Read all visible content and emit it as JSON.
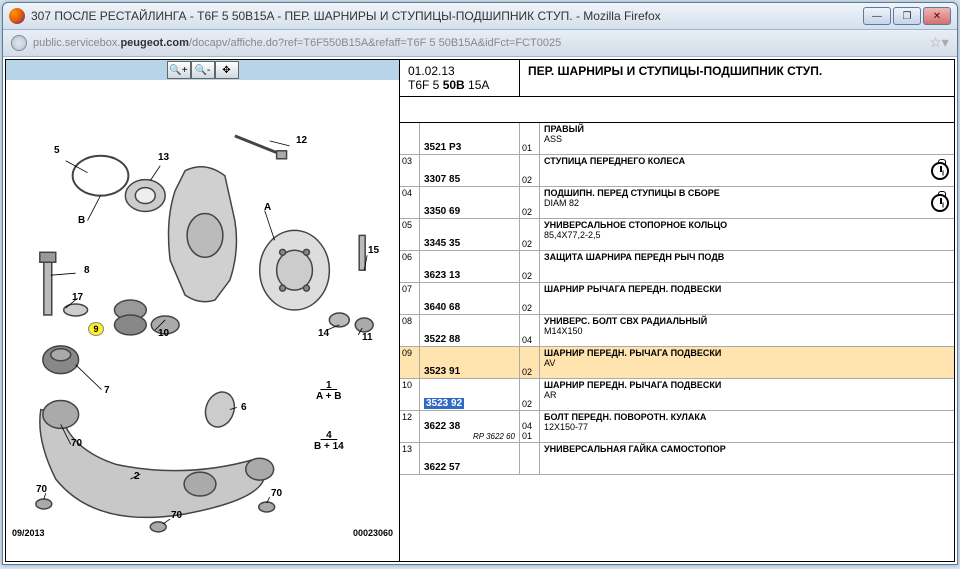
{
  "window": {
    "title": "307 ПОСЛЕ РЕСТАЙЛИНГА - T6F 5 50B15A - ПЕР. ШАРНИРЫ И СТУПИЦЫ-ПОДШИПНИК СТУП. - Mozilla Firefox",
    "url_pre": "public.servicebox.",
    "url_bold": "peugeot.com",
    "url_post": "/docapv/affiche.do?ref=T6F550B15A&refaff=T6F 5 50B15A&idFct=FCT0025"
  },
  "header": {
    "date": "01.02.13",
    "code_a": "T6F 5 ",
    "code_b": "50B",
    "code_c": " 15A",
    "title": "ПЕР. ШАРНИРЫ И СТУПИЦЫ-ПОДШИПНИК СТУП."
  },
  "diagram": {
    "date": "09/2013",
    "num": "00023060",
    "callouts": [
      "5",
      "B",
      "13",
      "12",
      "8",
      "17",
      "9",
      "10",
      "A",
      "15",
      "14",
      "11",
      "7",
      "70",
      "6",
      "1",
      "A + B",
      "4",
      "B + 14",
      "70",
      "2",
      "70"
    ],
    "highlight": "9"
  },
  "rows": [
    {
      "n": "",
      "pn": "3521 P3",
      "q": "01",
      "nm": "ПРАВЫЙ",
      "dt": "ASS"
    },
    {
      "n": "03",
      "pn": "3307 85",
      "q": "02",
      "nm": "СТУПИЦА ПЕРЕДНЕГО КОЛЕСА",
      "dt": "",
      "clock": true
    },
    {
      "n": "04",
      "pn": "3350 69",
      "q": "02",
      "nm": "ПОДШИПН. ПЕРЕД СТУПИЦЫ В СБОРЕ",
      "dt": "DIAM 82",
      "clock": true
    },
    {
      "n": "05",
      "pn": "3345 35",
      "q": "02",
      "nm": "УНИВЕРСАЛЬНОЕ СТОПОРНОЕ КОЛЬЦО",
      "dt": "85,4X77,2-2,5"
    },
    {
      "n": "06",
      "pn": "3623 13",
      "q": "02",
      "nm": "ЗАЩИТА ШАРНИРА ПЕРЕДН РЫЧ ПОДВ",
      "dt": ""
    },
    {
      "n": "07",
      "pn": "3640 68",
      "q": "02",
      "nm": "ШАРНИР РЫЧАГА ПЕРЕДН. ПОДВЕСКИ",
      "dt": ""
    },
    {
      "n": "08",
      "pn": "3522 88",
      "q": "04",
      "nm": "УНИВЕРС. БОЛТ СВХ РАДИАЛЬНЫЙ",
      "dt": "M14X150"
    },
    {
      "n": "09",
      "pn": "3523 91",
      "q": "02",
      "nm": "ШАРНИР ПЕРЕДН. РЫЧАГА ПОДВЕСКИ",
      "dt": "AV",
      "hl": true
    },
    {
      "n": "10",
      "pn": "3523 92",
      "q": "02",
      "nm": "ШАРНИР ПЕРЕДН. РЫЧАГА ПОДВЕСКИ",
      "dt": "AR",
      "sel": true
    },
    {
      "n": "12",
      "pn": "3622 38",
      "rp": "RP 3622 60",
      "q": "04\n01",
      "nm": "БОЛТ ПЕРЕДН. ПОВОРОТН. КУЛАКА",
      "dt": "12X150-77"
    },
    {
      "n": "13",
      "pn": "3622 57",
      "q": "",
      "nm": "УНИВЕРСАЛЬНАЯ ГАЙКА САМОСТОПОР",
      "dt": ""
    }
  ]
}
